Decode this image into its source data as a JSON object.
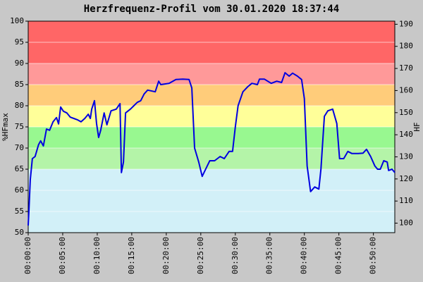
{
  "chart_data": {
    "type": "line",
    "title": "Herzfrequenz-Profil vom 30.01.2020 18:37:44",
    "y_label": "%HFmax",
    "y2_label": "HF",
    "xlim": [
      0,
      53.1
    ],
    "xticks": [
      {
        "value": 0,
        "label": "00:00:00"
      },
      {
        "value": 5,
        "label": "00:05:00"
      },
      {
        "value": 10,
        "label": "00:10:00"
      },
      {
        "value": 15,
        "label": "00:15:00"
      },
      {
        "value": 20,
        "label": "00:20:00"
      },
      {
        "value": 25,
        "label": "00:25:00"
      },
      {
        "value": 30,
        "label": "00:30:00"
      },
      {
        "value": 35,
        "label": "00:35:00"
      },
      {
        "value": 40,
        "label": "00:40:00"
      },
      {
        "value": 45,
        "label": "00:45:00"
      },
      {
        "value": 50,
        "label": "00:50:00"
      }
    ],
    "ylim": [
      50,
      100
    ],
    "yticks": [
      50,
      55,
      60,
      65,
      70,
      75,
      80,
      85,
      90,
      95,
      100
    ],
    "y2lim": [
      95.7,
      191.4
    ],
    "y2ticks": [
      100,
      110,
      120,
      130,
      140,
      150,
      160,
      170,
      180,
      190
    ],
    "grid": true,
    "zones": [
      {
        "from": 50,
        "to": 65,
        "color": "#d2f0f8"
      },
      {
        "from": 65,
        "to": 70,
        "color": "#b4f4a8"
      },
      {
        "from": 70,
        "to": 75,
        "color": "#98f890"
      },
      {
        "from": 75,
        "to": 80,
        "color": "#ffff99"
      },
      {
        "from": 80,
        "to": 85,
        "color": "#ffcc7a"
      },
      {
        "from": 85,
        "to": 90,
        "color": "#ff9999"
      },
      {
        "from": 90,
        "to": 100,
        "color": "#ff6666"
      }
    ],
    "series": [
      {
        "color": "#0000e0",
        "x": [
          0,
          0.1,
          0.3,
          0.6,
          1.0,
          1.5,
          1.8,
          2.2,
          2.65,
          3.1,
          3.6,
          4.1,
          4.4,
          4.7,
          5.1,
          5.6,
          6.1,
          6.6,
          7.1,
          7.65,
          8.2,
          8.7,
          9.0,
          9.2,
          9.6,
          9.9,
          10.2,
          10.5,
          11.0,
          11.4,
          12.0,
          12.75,
          13.3,
          13.5,
          13.8,
          14.1,
          14.8,
          15.3,
          15.8,
          16.3,
          16.8,
          17.3,
          18.4,
          18.9,
          19.2,
          20.4,
          21.4,
          22.4,
          23.3,
          23.7,
          24.1,
          24.7,
          25.2,
          25.7,
          26.3,
          27.0,
          27.8,
          28.4,
          29.1,
          29.6,
          30.0,
          30.4,
          31.1,
          31.8,
          32.4,
          33.2,
          33.5,
          34.2,
          35.2,
          36.0,
          36.7,
          37.2,
          37.8,
          38.3,
          39.0,
          39.6,
          40.0,
          40.4,
          40.9,
          41.5,
          42.1,
          42.4,
          42.9,
          43.4,
          44.1,
          44.7,
          45.1,
          45.7,
          46.3,
          46.9,
          47.8,
          48.5,
          49.0,
          49.6,
          50.2,
          50.6,
          51.0,
          51.5,
          52.0,
          52.2,
          52.7,
          53.1
        ],
        "values": [
          51.7,
          55,
          62.5,
          67.5,
          68,
          70.8,
          71.7,
          70.5,
          74.5,
          74.2,
          76.2,
          77.2,
          75.7,
          79.7,
          78.7,
          78.3,
          77.3,
          77,
          76.7,
          76.2,
          77,
          78,
          77,
          79.2,
          81.2,
          75.8,
          72.5,
          74.2,
          78.3,
          75.5,
          78.8,
          79.2,
          80.5,
          64.2,
          66.7,
          78.3,
          79.2,
          80,
          80.8,
          81.2,
          82.8,
          83.7,
          83.3,
          85.8,
          85,
          85.3,
          86.2,
          86.3,
          86.2,
          84.2,
          70,
          66.7,
          63.3,
          65,
          67,
          67,
          68,
          67.5,
          69.2,
          69.2,
          75,
          80,
          83.3,
          84.5,
          85.3,
          85,
          86.3,
          86.3,
          85.3,
          85.8,
          85.5,
          87.8,
          87,
          87.7,
          87,
          86.2,
          81.7,
          65.8,
          59.7,
          60.8,
          60.3,
          65,
          77.5,
          78.8,
          79.2,
          75.8,
          67.5,
          67.5,
          69.2,
          68.7,
          68.7,
          68.8,
          69.7,
          68,
          65.8,
          65,
          65,
          67,
          66.7,
          64.7,
          65,
          64.2
        ]
      }
    ]
  }
}
